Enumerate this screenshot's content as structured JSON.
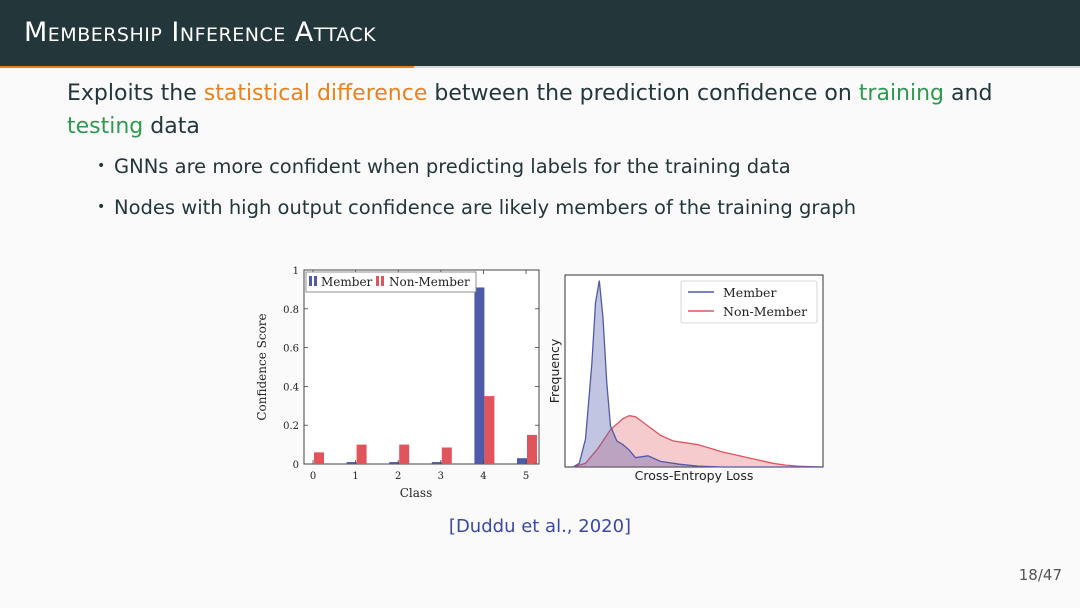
{
  "slide": {
    "title": "Membership Inference Attack",
    "headline": {
      "p1": "Exploits the ",
      "p2": "statistical difference",
      "p3": " between the prediction confidence on ",
      "p4": "training",
      "p5": " and ",
      "p6": "testing",
      "p7": " data"
    },
    "bullets": [
      "GNNs are more confident when predicting labels for the training data",
      "Nodes with high output confidence are likely members of the training graph"
    ],
    "bullet_symbol": "•",
    "citation": "[Duddu et al., 2020]",
    "page_number": "18/47",
    "colors": {
      "title_bar": "#23373b",
      "accent": "#eb811b",
      "highlight_orange": "#eb811b",
      "highlight_green": "#2e9a4f",
      "member": "#4f5aa8",
      "non_member": "#e0545c"
    }
  },
  "chart_data": [
    {
      "type": "bar",
      "ylabel": "Confidence Score",
      "xlabel": "Class",
      "categories": [
        "0",
        "1",
        "2",
        "3",
        "4",
        "5"
      ],
      "ylim": [
        0,
        1
      ],
      "yticks": [
        "0",
        "0.2",
        "0.4",
        "0.6",
        "0.8",
        "1"
      ],
      "legend_position": "top-left",
      "series": [
        {
          "name": "Member",
          "color": "#4f5aa8",
          "values": [
            0.0,
            0.01,
            0.01,
            0.01,
            0.91,
            0.03
          ]
        },
        {
          "name": "Non-Member",
          "color": "#e0545c",
          "values": [
            0.06,
            0.1,
            0.1,
            0.085,
            0.35,
            0.15
          ]
        }
      ]
    },
    {
      "type": "area",
      "xlabel": "Cross-Entropy Loss",
      "ylabel": "Frequency",
      "legend_position": "top-right",
      "series": [
        {
          "name": "Member",
          "color": "#4f5aa8",
          "x": [
            0,
            0.05,
            0.1,
            0.15,
            0.18,
            0.21,
            0.24,
            0.27,
            0.3,
            0.35,
            0.4,
            0.45,
            0.5,
            0.6,
            0.7,
            0.85,
            1.0,
            1.2,
            1.4,
            1.7,
            2.0
          ],
          "y": [
            0,
            0.02,
            0.15,
            0.55,
            0.88,
            1.0,
            0.8,
            0.45,
            0.22,
            0.14,
            0.12,
            0.09,
            0.05,
            0.06,
            0.03,
            0.015,
            0.005,
            0,
            0,
            0,
            0
          ]
        },
        {
          "name": "Non-Member",
          "color": "#e0545c",
          "x": [
            0,
            0.1,
            0.2,
            0.3,
            0.4,
            0.45,
            0.5,
            0.6,
            0.7,
            0.8,
            0.9,
            1.0,
            1.1,
            1.2,
            1.3,
            1.4,
            1.5,
            1.6,
            1.7,
            1.8,
            1.9,
            2.0
          ],
          "y": [
            0,
            0.02,
            0.1,
            0.2,
            0.26,
            0.275,
            0.27,
            0.22,
            0.17,
            0.14,
            0.13,
            0.12,
            0.1,
            0.08,
            0.065,
            0.05,
            0.035,
            0.02,
            0.01,
            0.005,
            0.002,
            0
          ]
        }
      ]
    }
  ]
}
